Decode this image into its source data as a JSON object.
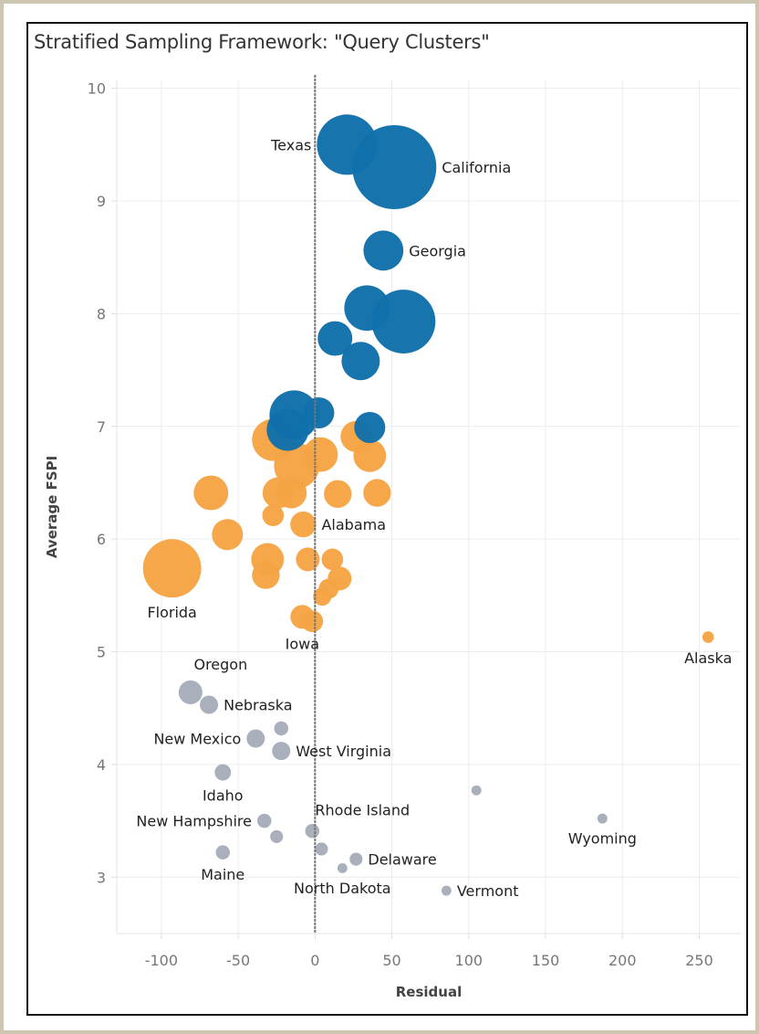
{
  "chart_data": {
    "type": "scatter",
    "title": "Stratified Sampling Framework: \"Query Clusters\"",
    "xlabel": "Residual",
    "ylabel": "Average FSPI",
    "xlim": [
      -129,
      277
    ],
    "ylim": [
      2.5,
      10.07
    ],
    "xticks": [
      "-100",
      "-50",
      "0",
      "50",
      "100",
      "150",
      "200",
      "250"
    ],
    "yticks": [
      "3",
      "4",
      "5",
      "6",
      "7",
      "8",
      "9",
      "10"
    ],
    "grid": true,
    "reference_line": {
      "axis": "x",
      "value": 0,
      "style": "dashed"
    },
    "colors": {
      "cluster_high": "#1170aa",
      "cluster_mid": "#f5a444",
      "cluster_low": "#a6adba"
    },
    "points": [
      {
        "x": 20.8,
        "y": 9.5,
        "size": 109,
        "cluster": "cluster_high",
        "label": "Texas",
        "anchor": "left"
      },
      {
        "x": 51.6,
        "y": 9.3,
        "size": 212,
        "cluster": "cluster_high",
        "label": "California",
        "anchor": "right"
      },
      {
        "x": 44.5,
        "y": 8.56,
        "size": 48,
        "cluster": "cluster_high",
        "label": "Georgia",
        "anchor": "right"
      },
      {
        "x": 33.8,
        "y": 8.05,
        "size": 62,
        "cluster": "cluster_high"
      },
      {
        "x": 57.6,
        "y": 7.93,
        "size": 122,
        "cluster": "cluster_high"
      },
      {
        "x": 13,
        "y": 7.78,
        "size": 36,
        "cluster": "cluster_high"
      },
      {
        "x": 29.7,
        "y": 7.58,
        "size": 44,
        "cluster": "cluster_high"
      },
      {
        "x": -27.3,
        "y": 6.88,
        "size": 53,
        "cluster": "cluster_mid"
      },
      {
        "x": -11.9,
        "y": 6.65,
        "size": 62,
        "cluster": "cluster_mid"
      },
      {
        "x": 3.6,
        "y": 6.75,
        "size": 36,
        "cluster": "cluster_mid"
      },
      {
        "x": 26.7,
        "y": 6.91,
        "size": 29,
        "cluster": "cluster_mid"
      },
      {
        "x": 35.6,
        "y": 6.74,
        "size": 32,
        "cluster": "cluster_mid"
      },
      {
        "x": -67.7,
        "y": 6.41,
        "size": 36,
        "cluster": "cluster_mid"
      },
      {
        "x": -24,
        "y": 6.41,
        "size": 29,
        "cluster": "cluster_mid"
      },
      {
        "x": -15.5,
        "y": 6.41,
        "size": 29,
        "cluster": "cluster_mid"
      },
      {
        "x": 14.8,
        "y": 6.4,
        "size": 23,
        "cluster": "cluster_mid"
      },
      {
        "x": 40.4,
        "y": 6.41,
        "size": 23,
        "cluster": "cluster_mid"
      },
      {
        "x": -27.3,
        "y": 6.21,
        "size": 14,
        "cluster": "cluster_mid"
      },
      {
        "x": -7.7,
        "y": 6.13,
        "size": 20,
        "cluster": "cluster_mid",
        "label": "Alabama",
        "anchor": "right"
      },
      {
        "x": -57,
        "y": 6.04,
        "size": 29,
        "cluster": "cluster_mid"
      },
      {
        "x": -93,
        "y": 5.74,
        "size": 102,
        "cluster": "cluster_mid",
        "label": "Florida",
        "anchor": "below"
      },
      {
        "x": -30.9,
        "y": 5.82,
        "size": 32,
        "cluster": "cluster_mid"
      },
      {
        "x": -32,
        "y": 5.68,
        "size": 23,
        "cluster": "cluster_mid"
      },
      {
        "x": -4.7,
        "y": 5.82,
        "size": 17,
        "cluster": "cluster_mid"
      },
      {
        "x": 11.3,
        "y": 5.82,
        "size": 14,
        "cluster": "cluster_mid"
      },
      {
        "x": 16,
        "y": 5.65,
        "size": 17,
        "cluster": "cluster_mid"
      },
      {
        "x": 8.9,
        "y": 5.56,
        "size": 12,
        "cluster": "cluster_mid"
      },
      {
        "x": 4.7,
        "y": 5.49,
        "size": 10,
        "cluster": "cluster_mid"
      },
      {
        "x": -8.3,
        "y": 5.31,
        "size": 17,
        "cluster": "cluster_mid",
        "label": "Iowa",
        "anchor": "below"
      },
      {
        "x": -1.8,
        "y": 5.27,
        "size": 14,
        "cluster": "cluster_mid"
      },
      {
        "x": 255.8,
        "y": 5.13,
        "size": 4,
        "cluster": "cluster_mid",
        "label": "Alaska",
        "anchor": "below"
      },
      {
        "x": 2.4,
        "y": 7.12,
        "size": 29,
        "cluster": "cluster_high"
      },
      {
        "x": -13.6,
        "y": 7.1,
        "size": 73,
        "cluster": "cluster_high"
      },
      {
        "x": -17.8,
        "y": 6.97,
        "size": 53,
        "cluster": "cluster_high"
      },
      {
        "x": 35.6,
        "y": 6.99,
        "size": 29,
        "cluster": "cluster_high"
      },
      {
        "x": -81,
        "y": 4.64,
        "size": 17,
        "cluster": "cluster_low",
        "label": "Oregon",
        "anchor": "above"
      },
      {
        "x": -69,
        "y": 4.53,
        "size": 10,
        "cluster": "cluster_low",
        "label": "Nebraska",
        "anchor": "right"
      },
      {
        "x": -38.6,
        "y": 4.23,
        "size": 10,
        "cluster": "cluster_low",
        "label": "New Mexico",
        "anchor": "left"
      },
      {
        "x": -22,
        "y": 4.32,
        "size": 6,
        "cluster": "cluster_low"
      },
      {
        "x": -22,
        "y": 4.12,
        "size": 10,
        "cluster": "cluster_low",
        "label": "West Virginia",
        "anchor": "right"
      },
      {
        "x": -60,
        "y": 3.93,
        "size": 8,
        "cluster": "cluster_low",
        "label": "Idaho",
        "anchor": "below"
      },
      {
        "x": 105,
        "y": 3.77,
        "size": 3,
        "cluster": "cluster_low"
      },
      {
        "x": 187,
        "y": 3.52,
        "size": 3,
        "cluster": "cluster_low",
        "label": "Wyoming",
        "anchor": "below"
      },
      {
        "x": -33,
        "y": 3.5,
        "size": 6,
        "cluster": "cluster_low",
        "label": "New Hampshire",
        "anchor": "left"
      },
      {
        "x": -25,
        "y": 3.36,
        "size": 5,
        "cluster": "cluster_low"
      },
      {
        "x": -1.8,
        "y": 3.41,
        "size": 6,
        "cluster": "cluster_low",
        "label": "Rhode Island",
        "anchor": "above-right"
      },
      {
        "x": 4.2,
        "y": 3.25,
        "size": 5,
        "cluster": "cluster_low"
      },
      {
        "x": -60,
        "y": 3.22,
        "size": 6,
        "cluster": "cluster_low",
        "label": "Maine",
        "anchor": "below"
      },
      {
        "x": 26.7,
        "y": 3.16,
        "size": 5,
        "cluster": "cluster_low",
        "label": "Delaware",
        "anchor": "right"
      },
      {
        "x": 17.8,
        "y": 3.08,
        "size": 3,
        "cluster": "cluster_low",
        "label": "North Dakota",
        "anchor": "below"
      },
      {
        "x": 85.5,
        "y": 2.88,
        "size": 3,
        "cluster": "cluster_low",
        "label": "Vermont",
        "anchor": "right"
      }
    ]
  }
}
